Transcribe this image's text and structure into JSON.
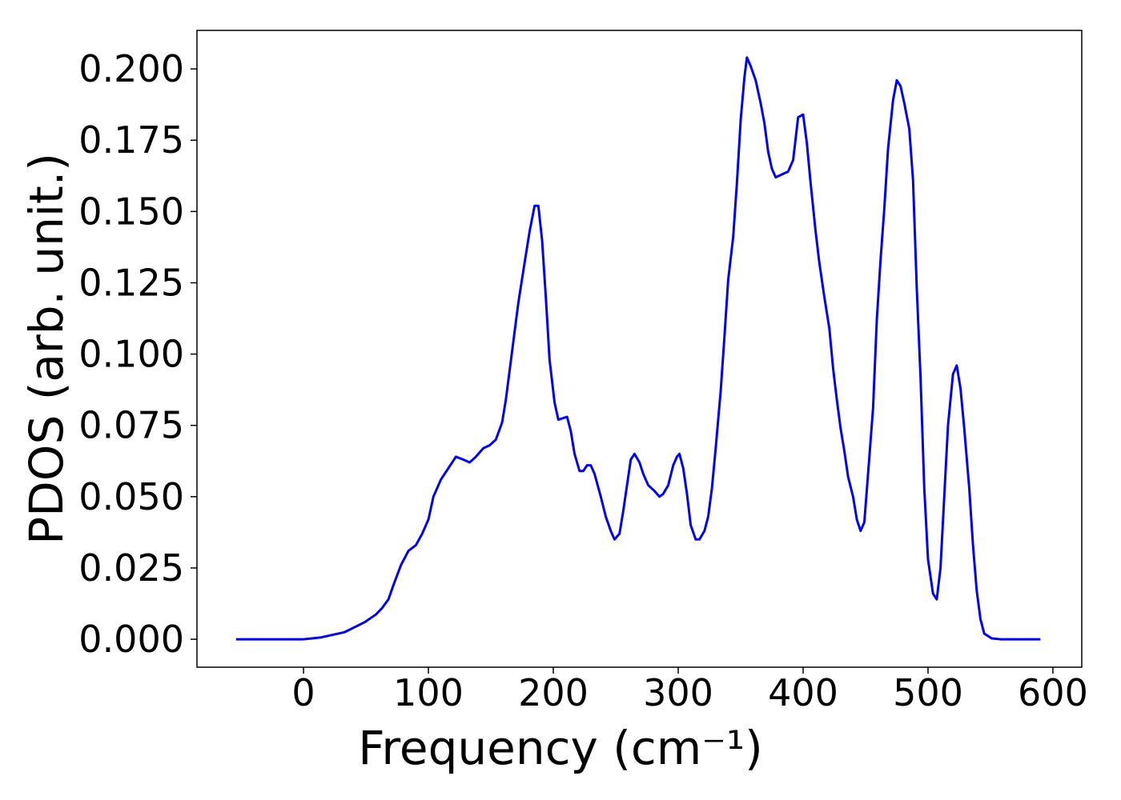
{
  "chart_data": {
    "type": "line",
    "x_label": "Frequency (cm⁻¹)",
    "y_label": "PDOS (arb. unit.)",
    "color": "#0000ff",
    "x": [
      -54,
      0,
      13.5,
      33,
      49,
      58,
      63,
      68,
      72,
      78,
      84,
      90,
      95,
      100,
      104,
      110,
      116,
      122,
      128,
      133,
      138,
      144,
      149,
      154,
      159,
      162,
      167,
      172,
      177,
      181,
      185,
      188,
      191,
      194,
      197,
      201,
      204,
      211,
      214,
      217,
      221,
      224,
      227,
      230,
      233,
      238,
      242,
      246,
      249,
      253,
      256,
      259,
      262,
      265,
      269,
      272,
      276,
      281,
      285,
      288,
      292,
      296,
      299,
      301,
      304,
      307,
      310,
      314,
      317,
      321,
      324,
      327,
      330,
      334,
      337,
      340,
      344,
      347,
      350,
      353,
      355,
      358,
      362,
      366,
      369,
      372,
      375,
      378,
      383,
      388,
      392,
      396,
      400,
      403,
      406,
      410,
      413,
      417,
      421,
      424,
      427,
      430,
      433,
      436,
      440,
      443,
      446,
      449,
      452,
      456,
      459,
      462,
      465,
      468,
      472,
      475,
      478,
      481,
      485,
      488,
      491,
      494,
      497,
      500,
      504,
      507,
      510,
      513,
      516,
      520,
      523,
      526,
      529,
      533,
      536,
      539,
      542,
      545,
      551,
      558,
      590
    ],
    "values": [
      0,
      0,
      0.0006,
      0.0025,
      0.006,
      0.0087,
      0.011,
      0.014,
      0.019,
      0.026,
      0.031,
      0.033,
      0.037,
      0.042,
      0.05,
      0.056,
      0.06,
      0.064,
      0.063,
      0.062,
      0.064,
      0.067,
      0.068,
      0.07,
      0.076,
      0.084,
      0.101,
      0.118,
      0.132,
      0.143,
      0.152,
      0.152,
      0.14,
      0.12,
      0.098,
      0.083,
      0.077,
      0.078,
      0.073,
      0.065,
      0.059,
      0.059,
      0.061,
      0.061,
      0.058,
      0.05,
      0.043,
      0.038,
      0.035,
      0.037,
      0.045,
      0.054,
      0.063,
      0.065,
      0.062,
      0.058,
      0.054,
      0.052,
      0.05,
      0.051,
      0.054,
      0.061,
      0.064,
      0.065,
      0.06,
      0.051,
      0.04,
      0.035,
      0.035,
      0.038,
      0.043,
      0.053,
      0.067,
      0.087,
      0.106,
      0.126,
      0.141,
      0.16,
      0.182,
      0.197,
      0.204,
      0.201,
      0.196,
      0.188,
      0.181,
      0.171,
      0.165,
      0.162,
      0.163,
      0.164,
      0.168,
      0.183,
      0.184,
      0.174,
      0.16,
      0.143,
      0.132,
      0.12,
      0.109,
      0.095,
      0.084,
      0.074,
      0.066,
      0.057,
      0.05,
      0.042,
      0.038,
      0.041,
      0.058,
      0.081,
      0.112,
      0.133,
      0.151,
      0.172,
      0.189,
      0.196,
      0.194,
      0.188,
      0.179,
      0.161,
      0.123,
      0.092,
      0.053,
      0.028,
      0.016,
      0.014,
      0.025,
      0.05,
      0.075,
      0.093,
      0.096,
      0.088,
      0.074,
      0.053,
      0.033,
      0.017,
      0.007,
      0.002,
      0.0003,
      0,
      0
    ],
    "xlim": [
      -85.3,
      623.1
    ],
    "ylim": [
      -0.0098,
      0.2135
    ],
    "xticks": [
      0,
      100,
      200,
      300,
      400,
      500,
      600
    ],
    "yticks": [
      {
        "value": 0,
        "label": "0.000"
      },
      {
        "value": 0.025,
        "label": "0.025"
      },
      {
        "value": 0.05,
        "label": "0.050"
      },
      {
        "value": 0.075,
        "label": "0.075"
      },
      {
        "value": 0.1,
        "label": "0.100"
      },
      {
        "value": 0.125,
        "label": "0.125"
      },
      {
        "value": 0.15,
        "label": "0.150"
      },
      {
        "value": 0.175,
        "label": "0.175"
      },
      {
        "value": 0.2,
        "label": "0.200"
      }
    ],
    "grid": false
  }
}
